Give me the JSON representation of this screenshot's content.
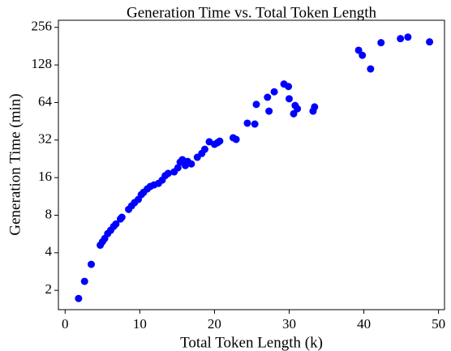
{
  "chart_data": {
    "type": "scatter",
    "title": "Generation Time vs. Total Token Length",
    "xlabel": "Total Token Length (k)",
    "ylabel": "Generation Time (min)",
    "color": "#0000ff",
    "yscale": "log",
    "ylog_base": 2,
    "xlim": [
      -0.9,
      50.8
    ],
    "ylim": [
      1.4,
      292
    ],
    "xticks": [
      0,
      10,
      20,
      30,
      40,
      50
    ],
    "yticks": [
      2,
      4,
      8,
      16,
      32,
      64,
      128,
      256
    ],
    "x": [
      1.8,
      2.6,
      3.5,
      4.7,
      5.0,
      5.3,
      5.7,
      6.1,
      6.5,
      6.8,
      7.4,
      7.6,
      8.5,
      8.9,
      9.3,
      9.8,
      10.2,
      10.5,
      11.0,
      11.4,
      11.9,
      12.5,
      13.0,
      13.4,
      13.8,
      14.6,
      15.1,
      15.4,
      15.7,
      16.1,
      16.4,
      16.9,
      17.7,
      18.3,
      18.7,
      19.3,
      20.0,
      20.4,
      20.7,
      22.5,
      22.9,
      24.4,
      25.4,
      25.6,
      27.1,
      27.3,
      28.0,
      29.3,
      29.9,
      30.0,
      30.6,
      30.8,
      31.1,
      33.2,
      33.4,
      39.3,
      39.8,
      40.9,
      42.3,
      44.9,
      45.9,
      48.8
    ],
    "values": [
      1.72,
      2.36,
      3.23,
      4.6,
      4.9,
      5.2,
      5.7,
      6.06,
      6.5,
      6.8,
      7.46,
      7.7,
      8.9,
      9.5,
      10.1,
      10.7,
      11.7,
      12.2,
      13,
      13.6,
      14,
      14.4,
      15.3,
      16.6,
      17.3,
      17.8,
      19.2,
      21.3,
      22.3,
      20,
      21.6,
      20.6,
      23.3,
      25,
      27,
      31,
      29.6,
      30.5,
      31.4,
      33.4,
      32.4,
      43.7,
      43,
      61.8,
      70.5,
      54.6,
      78,
      90,
      86,
      68.6,
      52,
      60.6,
      57,
      54.6,
      59,
      168,
      153,
      119,
      193,
      208,
      214,
      196
    ]
  }
}
